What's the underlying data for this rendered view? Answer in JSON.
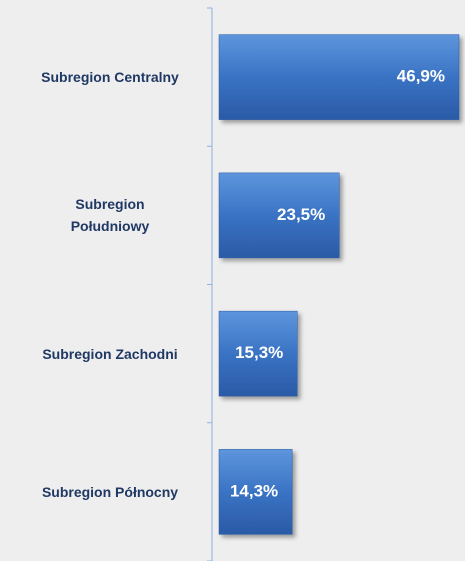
{
  "chart_data": {
    "type": "bar",
    "orientation": "horizontal",
    "categories": [
      "Subregion Centralny",
      "Subregion\nPołudniowy",
      "Subregion Zachodni",
      "Subregion Północny"
    ],
    "values": [
      46.9,
      23.5,
      15.3,
      14.3
    ],
    "value_labels": [
      "46,9%",
      "23,5%",
      "15,3%",
      "14,3%"
    ],
    "color": "#3a73c4"
  }
}
